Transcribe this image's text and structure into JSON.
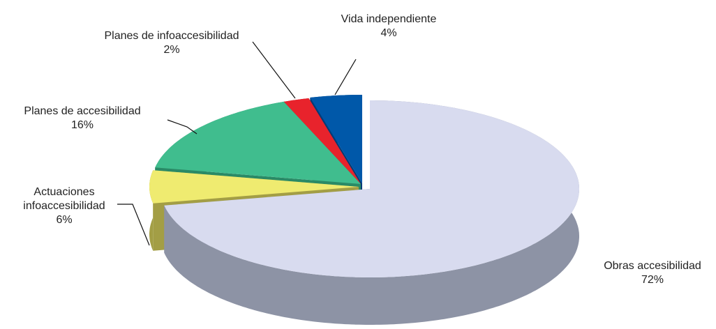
{
  "chart_data": {
    "type": "pie",
    "categories": [
      "Obras accesibilidad",
      "Actuaciones infoaccesibilidad",
      "Planes de accesibilidad",
      "Planes de infoaccesibilidad",
      "Vida independiente"
    ],
    "values": [
      72,
      6,
      16,
      2,
      4
    ],
    "value_labels": [
      "72%",
      "6%",
      "16%",
      "2%",
      "4%"
    ],
    "colors": [
      "#d8dbef",
      "#efeb70",
      "#40bd8e",
      "#e8232c",
      "#0058a9"
    ],
    "side_colors": [
      "#8d93a5",
      "#a39e45",
      "#2a8a66",
      "#9c1519",
      "#003c77"
    ]
  }
}
